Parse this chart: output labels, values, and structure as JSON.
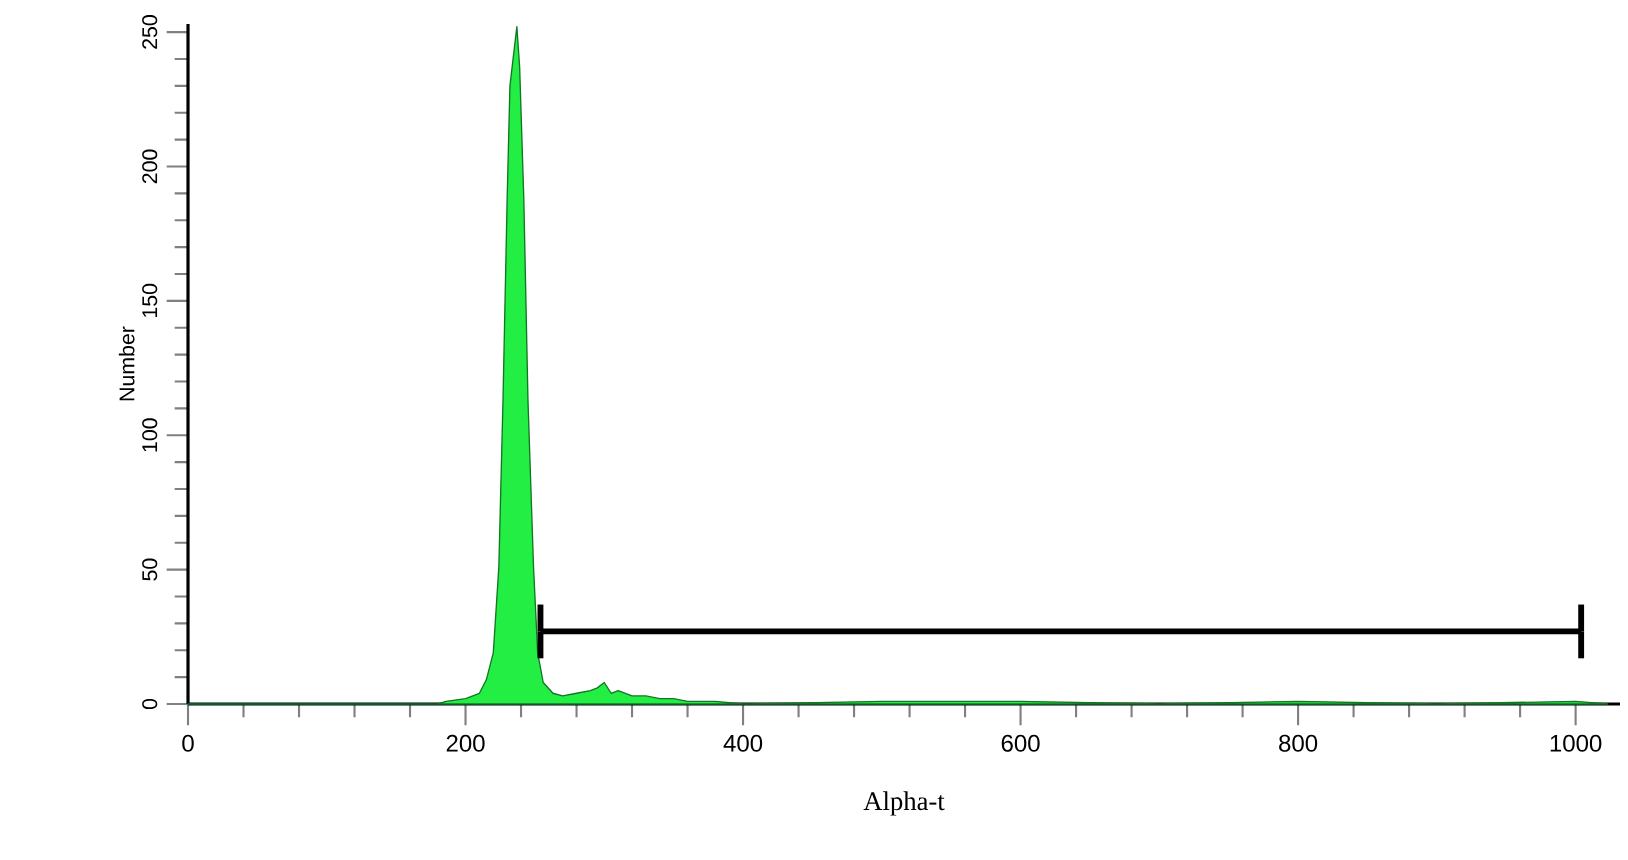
{
  "chart_data": {
    "type": "area",
    "xlabel": "Alpha-t",
    "ylabel": "Number",
    "xlim": [
      0,
      1032
    ],
    "ylim": [
      0,
      253
    ],
    "xticks": [
      0,
      200,
      400,
      600,
      800,
      1000
    ],
    "yticks": [
      0,
      50,
      100,
      150,
      200,
      250
    ],
    "grid": false,
    "legend": false,
    "marker": "none",
    "series": [
      {
        "color": "#22ee44",
        "x": [
          0,
          180,
          186,
          200,
          210,
          215,
          220,
          224,
          227,
          230,
          232,
          237,
          239,
          242,
          245,
          249,
          252,
          256,
          263,
          270,
          280,
          290,
          295,
          300,
          305,
          310,
          320,
          330,
          340,
          350,
          360,
          380,
          400,
          500,
          600,
          700,
          800,
          900,
          1000,
          1023
        ],
        "values": [
          0,
          0,
          1,
          2,
          4,
          9,
          19,
          51,
          113,
          188,
          230,
          252,
          237,
          188,
          113,
          51,
          19,
          8,
          4,
          3,
          4,
          5,
          6,
          8,
          4,
          5,
          3,
          3,
          2,
          2,
          1,
          1,
          0,
          1,
          1,
          0,
          1,
          0,
          1,
          0
        ]
      },
      {
        "type": "line",
        "color": "#000000",
        "x": [
          254,
          1004
        ],
        "values": [
          27,
          27
        ],
        "errors": [
          10,
          10
        ]
      }
    ]
  }
}
